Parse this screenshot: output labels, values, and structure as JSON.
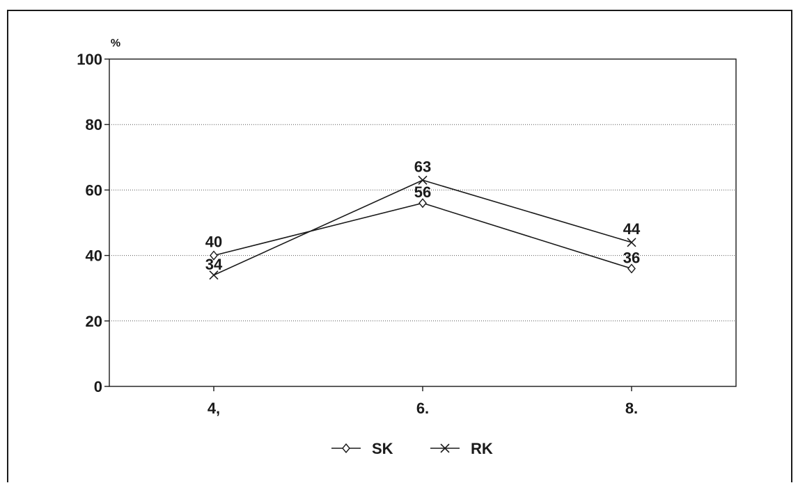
{
  "chart_data": {
    "type": "line",
    "categories": [
      "4,",
      "6.",
      "8."
    ],
    "series": [
      {
        "name": "SK",
        "values": [
          40,
          56,
          36
        ],
        "marker": "diamond"
      },
      {
        "name": "RK",
        "values": [
          34,
          63,
          44
        ],
        "marker": "x"
      }
    ],
    "ylabel": "%",
    "ylim": [
      0,
      100
    ],
    "yticks": [
      0,
      20,
      40,
      60,
      80,
      100
    ],
    "grid": true,
    "legend": "bottom-center",
    "colors": {
      "line": "#1a1a1a",
      "grid": "#555555",
      "background": "#ffffff"
    }
  }
}
